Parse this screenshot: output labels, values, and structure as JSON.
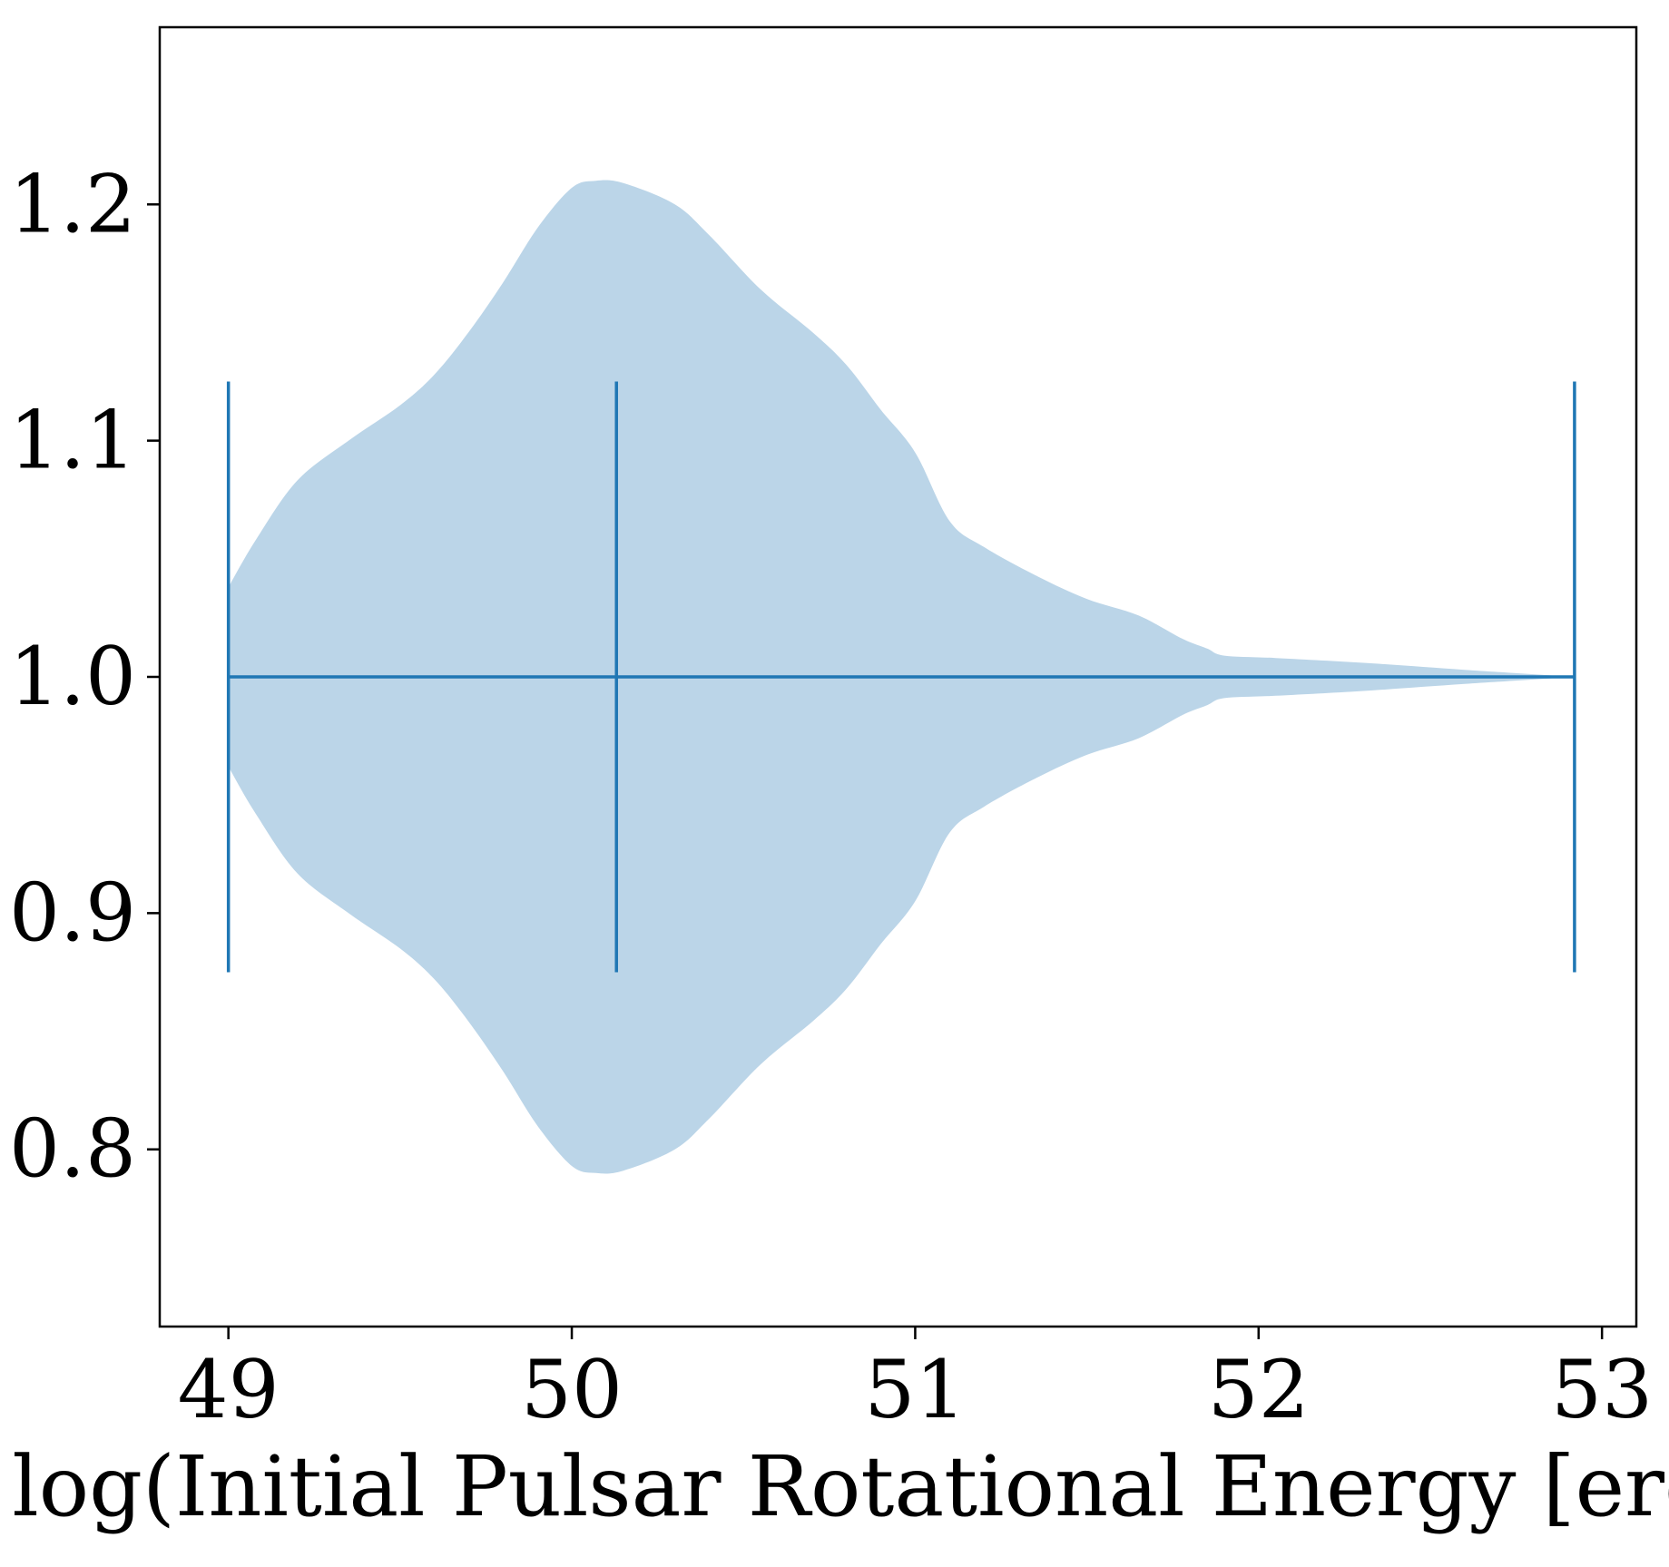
{
  "chart_data": {
    "type": "violin",
    "orientation": "horizontal",
    "title": "",
    "xlabel": "log(Initial Pulsar Rotational Energy [erg])",
    "ylabel": "",
    "xlim": [
      48.8,
      53.1
    ],
    "ylim": [
      0.725,
      1.275
    ],
    "xticks": [
      49,
      50,
      51,
      52,
      53
    ],
    "xtick_labels": [
      "49",
      "50",
      "51",
      "52",
      "53"
    ],
    "yticks": [
      0.8,
      0.9,
      1.0,
      1.1,
      1.2
    ],
    "ytick_labels": [
      "0.8",
      "0.9",
      "1.0",
      "1.1",
      "1.2"
    ],
    "grid": false,
    "position": 1.0,
    "violin_half_height": 0.125,
    "stats": {
      "min": 49.0,
      "mean": 50.13,
      "max": 52.92
    },
    "density_profile": {
      "x": [
        49.0,
        49.08,
        49.2,
        49.35,
        49.5,
        49.6,
        49.7,
        49.8,
        49.9,
        50.0,
        50.07,
        50.15,
        50.3,
        50.4,
        50.55,
        50.7,
        50.8,
        50.9,
        51.0,
        51.1,
        51.2,
        51.35,
        51.5,
        51.65,
        51.78,
        51.85,
        51.9,
        52.05,
        52.3,
        52.6,
        52.92
      ],
      "half_width": [
        0.038,
        0.058,
        0.083,
        0.1,
        0.115,
        0.128,
        0.146,
        0.167,
        0.19,
        0.207,
        0.21,
        0.209,
        0.2,
        0.187,
        0.164,
        0.146,
        0.132,
        0.113,
        0.095,
        0.066,
        0.055,
        0.043,
        0.033,
        0.026,
        0.016,
        0.012,
        0.009,
        0.008,
        0.006,
        0.003,
        0.0
      ]
    },
    "colors": {
      "body": "#bbd5e8",
      "lines": "#1f77b4",
      "axes": "#000000"
    }
  }
}
